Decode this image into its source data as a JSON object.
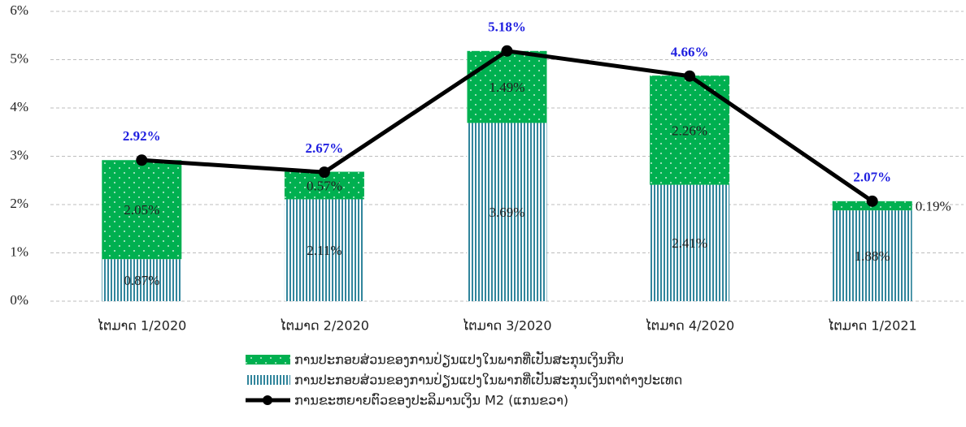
{
  "chart_data": {
    "type": "bar-line",
    "categories": [
      "ໄຕມາດ 1/2020",
      "ໄຕມາດ 2/2020",
      "ໄຕມາດ 3/2020",
      "ໄຕມາດ 4/2020",
      "ໄຕມາດ 1/2021"
    ],
    "series": [
      {
        "name": "ການປະກອບສ່ວນຂອງການປ່ຽນແປງໃນພາກທີ່ເປັນສະກຸນເງິນກີບ",
        "type": "bar",
        "color": "#00b050",
        "pattern": "dots",
        "values": [
          2.05,
          0.57,
          1.49,
          2.26,
          0.19
        ],
        "value_labels": [
          "2.05%",
          "0.57%",
          "1.49%",
          "2.26%",
          "0.19%"
        ]
      },
      {
        "name": "ການປະກອບສ່ວນຂອງການປ່ຽນແປງໃນພາກທີ່ເປັນສະກຸນເງິນຕາຕ່າງປະເທດ",
        "type": "bar",
        "color": "#31859c",
        "pattern": "stripes",
        "values": [
          0.87,
          2.11,
          3.69,
          2.41,
          1.88
        ],
        "value_labels": [
          "0.87%",
          "2.11%",
          "3.69%",
          "2.41%",
          "1.88%"
        ]
      },
      {
        "name": "ການຂະຫຍາຍຕົວຂອງປະລິມານເງິນ M2 (ແກນຂວາ)",
        "type": "line",
        "color": "#000000",
        "label_color": "#1f1fe0",
        "values": [
          2.92,
          2.67,
          5.18,
          4.66,
          2.07
        ],
        "value_labels": [
          "2.92%",
          "2.67%",
          "5.18%",
          "4.66%",
          "2.07%"
        ]
      }
    ],
    "ylim": [
      0,
      6
    ],
    "yticks": [
      {
        "value": 0,
        "label": "0%"
      },
      {
        "value": 1,
        "label": "1%"
      },
      {
        "value": 2,
        "label": "2%"
      },
      {
        "value": 3,
        "label": "3%"
      },
      {
        "value": 4,
        "label": "4%"
      },
      {
        "value": 5,
        "label": "5%"
      },
      {
        "value": 6,
        "label": "6%"
      }
    ],
    "grid": true
  }
}
